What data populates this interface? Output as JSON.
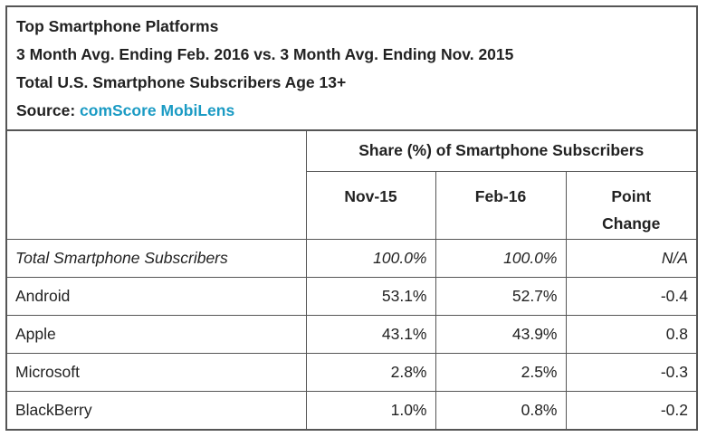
{
  "chart_data": {
    "type": "table",
    "title": "Top Smartphone Platforms",
    "subtitle": "3 Month Avg. Ending Feb. 2016 vs. 3 Month Avg. Ending Nov. 2015",
    "population": "Total U.S. Smartphone Subscribers Age 13+",
    "source_label": "Source:",
    "source_name": "comScore MobiLens",
    "group_header": "Share (%) of Smartphone Subscribers",
    "columns": [
      "Nov-15",
      "Feb-16",
      "Point Change"
    ],
    "column_lines": [
      [
        "Nov-15"
      ],
      [
        "Feb-16"
      ],
      [
        "Point",
        "Change"
      ]
    ],
    "rows": [
      {
        "label": "Total Smartphone Subscribers",
        "nov15": "100.0%",
        "feb16": "100.0%",
        "change": "N/A"
      },
      {
        "label": "Android",
        "nov15": "53.1%",
        "feb16": "52.7%",
        "change": "-0.4"
      },
      {
        "label": "Apple",
        "nov15": "43.1%",
        "feb16": "43.9%",
        "change": "0.8"
      },
      {
        "label": "Microsoft",
        "nov15": "2.8%",
        "feb16": "2.5%",
        "change": "-0.3"
      },
      {
        "label": "BlackBerry",
        "nov15": "1.0%",
        "feb16": "0.8%",
        "change": "-0.2"
      }
    ]
  },
  "colors": {
    "border": "#555555",
    "source_link": "#1b9bc4",
    "text": "#222222"
  }
}
